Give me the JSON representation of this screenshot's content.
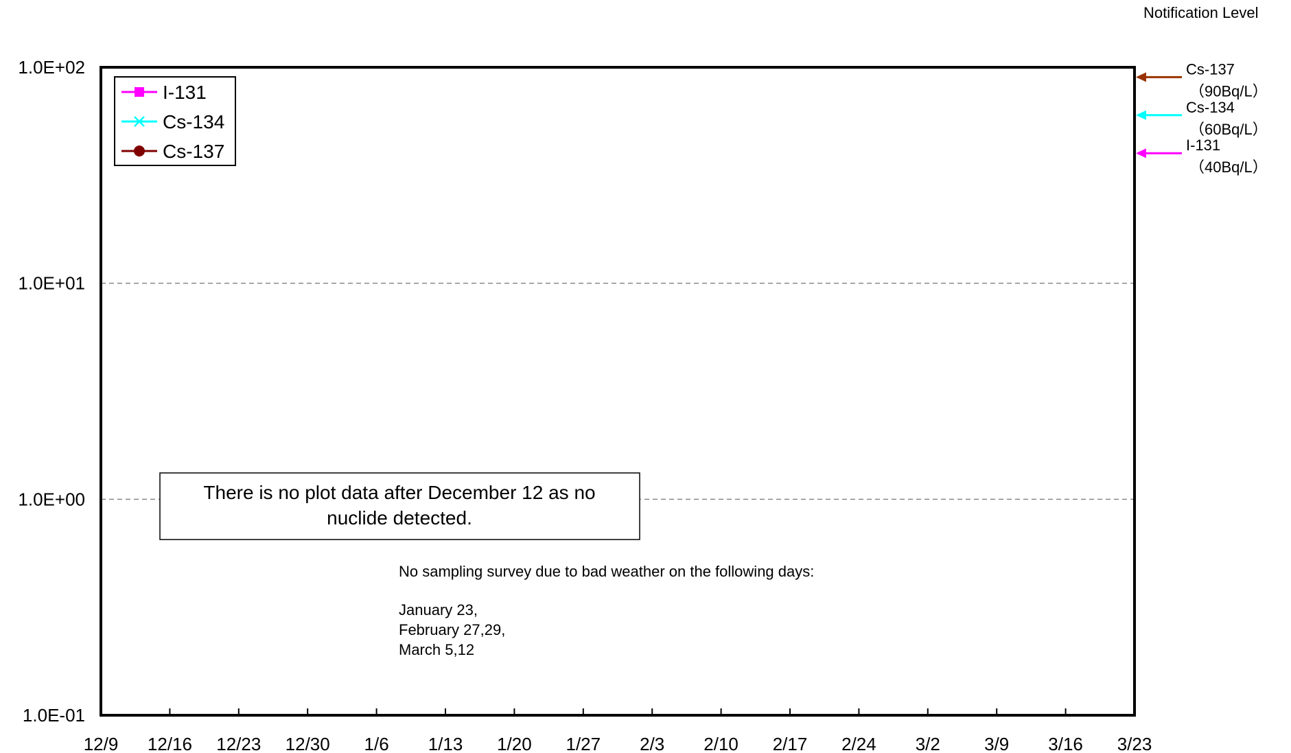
{
  "chart_data": {
    "type": "line",
    "title": "",
    "xlabel": "",
    "ylabel": "",
    "yscale": "log",
    "ylim": [
      0.1,
      100
    ],
    "y_tick_labels": [
      "1.0E+02",
      "1.0E+01",
      "1.0E+00",
      "1.0E-01"
    ],
    "x_tick_labels": [
      "12/9",
      "12/16",
      "12/23",
      "12/30",
      "1/6",
      "1/13",
      "1/20",
      "1/27",
      "2/3",
      "2/10",
      "2/17",
      "2/24",
      "3/2",
      "3/9",
      "3/16",
      "3/23"
    ],
    "grid": "horizontal dashed",
    "legend_position": "top-left",
    "series": [
      {
        "name": "I-131",
        "color": "#ff00ff",
        "marker": "square",
        "values": []
      },
      {
        "name": "Cs-134",
        "color": "#00ffff",
        "marker": "x",
        "values": []
      },
      {
        "name": "Cs-137",
        "color": "#800000",
        "marker": "circle",
        "values": []
      }
    ],
    "notification_level": {
      "heading": "Notification Level",
      "levels": [
        {
          "nuclide": "Cs-137",
          "label": "（90Bq/L）",
          "value": 90,
          "color": "#993300"
        },
        {
          "nuclide": "Cs-134",
          "label": "（60Bq/L）",
          "value": 60,
          "color": "#00ffff"
        },
        {
          "nuclide": "I-131",
          "label": "（40Bq/L）",
          "value": 40,
          "color": "#ff00ff"
        }
      ]
    },
    "annotations": {
      "no_data_box": [
        "There is no plot data after December 12 as no",
        "nuclide detected."
      ],
      "weather_note": [
        "No sampling survey due to bad weather on the following days:",
        "",
        "January 23,",
        "February 27,29,",
        "March 5,12"
      ]
    }
  }
}
